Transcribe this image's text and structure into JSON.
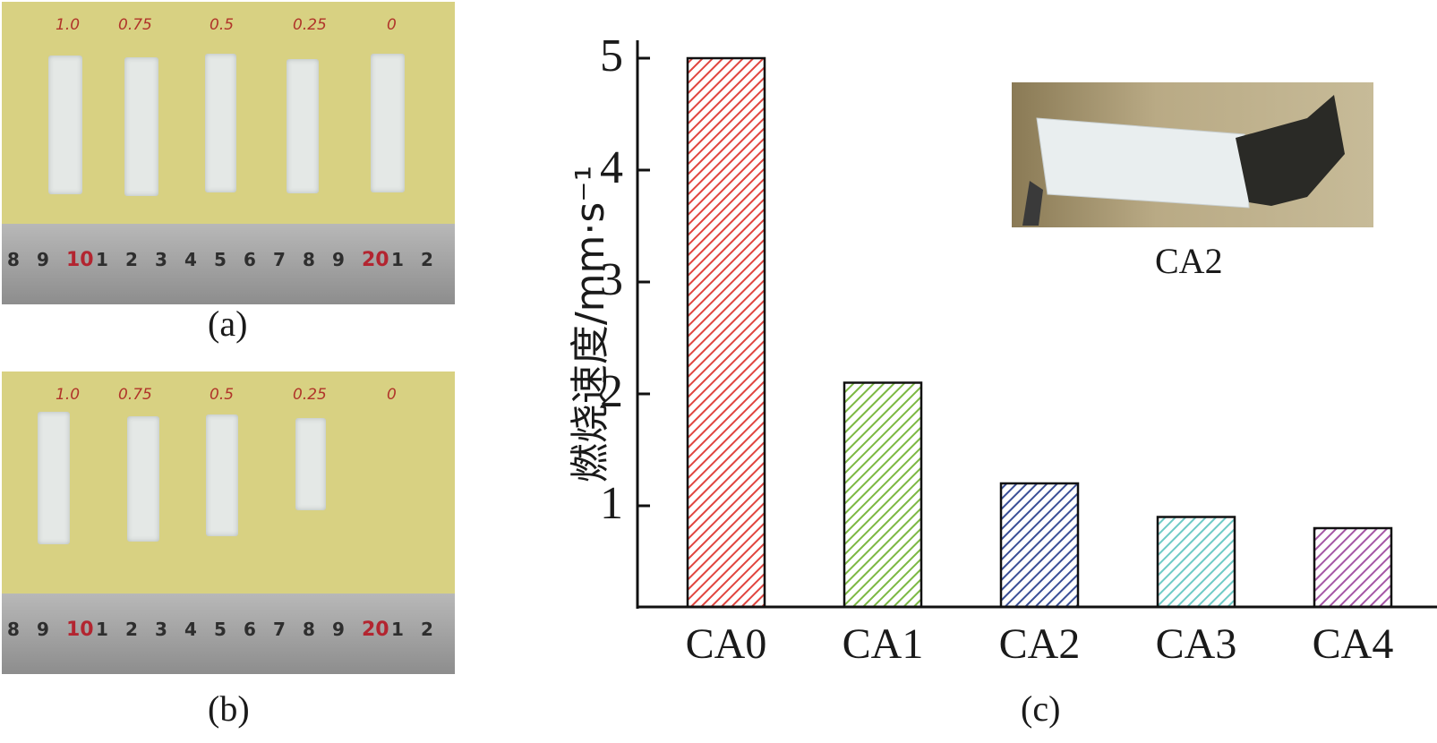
{
  "panels": {
    "a": {
      "caption": "(a)",
      "sample_labels": [
        "1.0",
        "0.75",
        "0.5",
        "0.25",
        "0"
      ],
      "ruler_numbers": [
        "8",
        "9",
        "10",
        "1",
        "2",
        "3",
        "4",
        "5",
        "6",
        "7",
        "8",
        "9",
        "20",
        "1",
        "2"
      ]
    },
    "b": {
      "caption": "(b)",
      "sample_labels": [
        "1.0",
        "0.75",
        "0.5",
        "0.25",
        "0"
      ],
      "ruler_numbers": [
        "8",
        "9",
        "10",
        "1",
        "2",
        "3",
        "4",
        "5",
        "6",
        "7",
        "8",
        "9",
        "20",
        "1",
        "2"
      ]
    },
    "c": {
      "caption": "(c)"
    }
  },
  "inset": {
    "label": "CA2"
  },
  "chart_data": {
    "type": "bar",
    "categories": [
      "CA0",
      "CA1",
      "CA2",
      "CA3",
      "CA4"
    ],
    "values": [
      5.0,
      2.1,
      1.2,
      0.9,
      0.8
    ],
    "ylabel": "燃烧速度/mm·s⁻¹",
    "xlabel": "",
    "yticks": [
      1,
      2,
      3,
      4,
      5
    ],
    "ylim": [
      0.2,
      5.3
    ],
    "bar_colors": [
      "#e0453f",
      "#7cb843",
      "#3a4f96",
      "#6ecac6",
      "#a457a5"
    ],
    "pattern": "diagonal-hatch",
    "grid": false,
    "legend": "none"
  }
}
